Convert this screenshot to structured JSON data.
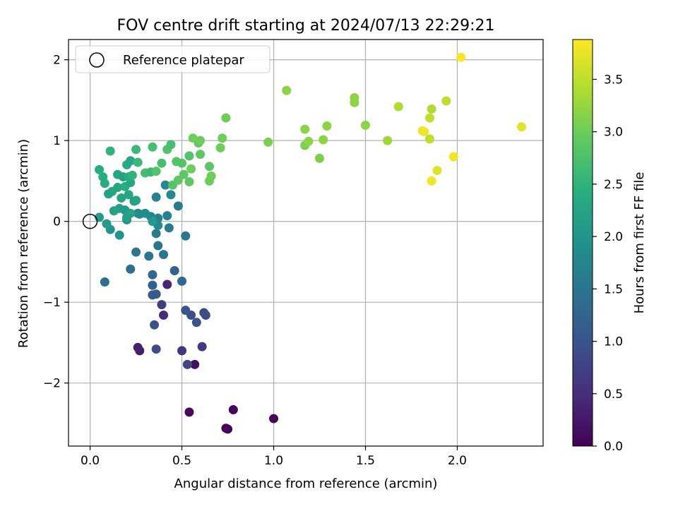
{
  "chart_data": {
    "type": "scatter",
    "title": "FOV centre drift starting at 2024/07/13 22:29:21",
    "xlabel": "Angular distance from reference (arcmin)",
    "ylabel": "Rotation from reference (arcmin)",
    "xlim": [
      -0.1176,
      2.4676
    ],
    "ylim": [
      -2.78,
      2.25
    ],
    "xticks": [
      0.0,
      0.5,
      1.0,
      1.5,
      2.0
    ],
    "xtick_labels": [
      "0.0",
      "0.5",
      "1.0",
      "1.5",
      "2.0"
    ],
    "yticks": [
      -2,
      -1,
      0,
      1,
      2
    ],
    "ytick_labels": [
      "−2",
      "−1",
      "0",
      "1",
      "2"
    ],
    "grid": true,
    "legend": {
      "position": "top-left",
      "label": "Reference platepar",
      "marker": "open circle"
    },
    "reference_point": {
      "x": 0.0,
      "y": 0.0
    },
    "colorbar": {
      "label": "Hours from first FF file",
      "colormap": "viridis",
      "range": [
        0.0,
        3.88
      ],
      "ticks": [
        0.0,
        0.5,
        1.0,
        1.5,
        2.0,
        2.5,
        3.0,
        3.5
      ],
      "tick_labels": [
        "0.0",
        "0.5",
        "1.0",
        "1.5",
        "2.0",
        "2.5",
        "3.0",
        "3.5"
      ]
    },
    "points": [
      {
        "x": 0.75,
        "y": -2.57,
        "c": 0.05
      },
      {
        "x": 0.74,
        "y": -2.56,
        "c": 0.05
      },
      {
        "x": 0.78,
        "y": -2.33,
        "c": 0.08
      },
      {
        "x": 1.0,
        "y": -2.44,
        "c": 0.07
      },
      {
        "x": 0.54,
        "y": -2.36,
        "c": 0.1
      },
      {
        "x": 0.57,
        "y": -1.77,
        "c": 0.15
      },
      {
        "x": 0.27,
        "y": -1.6,
        "c": 0.3
      },
      {
        "x": 0.26,
        "y": -1.56,
        "c": 0.35
      },
      {
        "x": 0.42,
        "y": -0.78,
        "c": 0.4
      },
      {
        "x": 0.4,
        "y": -1.16,
        "c": 0.45
      },
      {
        "x": 0.5,
        "y": -1.6,
        "c": 0.6
      },
      {
        "x": 0.61,
        "y": -1.55,
        "c": 0.6
      },
      {
        "x": 0.53,
        "y": -1.77,
        "c": 0.8
      },
      {
        "x": 0.39,
        "y": -1.03,
        "c": 0.7
      },
      {
        "x": 0.36,
        "y": -1.58,
        "c": 0.9
      },
      {
        "x": 0.55,
        "y": -1.16,
        "c": 0.9
      },
      {
        "x": 0.62,
        "y": -1.13,
        "c": 0.9
      },
      {
        "x": 0.63,
        "y": -1.16,
        "c": 0.9
      },
      {
        "x": 0.52,
        "y": -1.1,
        "c": 1.0
      },
      {
        "x": 0.58,
        "y": -1.25,
        "c": 1.0
      },
      {
        "x": 0.35,
        "y": -1.28,
        "c": 1.0
      },
      {
        "x": 0.34,
        "y": -0.91,
        "c": 1.1
      },
      {
        "x": 0.36,
        "y": -0.9,
        "c": 1.1
      },
      {
        "x": 0.34,
        "y": -0.79,
        "c": 1.2
      },
      {
        "x": 0.34,
        "y": -0.66,
        "c": 1.3
      },
      {
        "x": 0.46,
        "y": -0.61,
        "c": 1.2
      },
      {
        "x": 0.5,
        "y": -0.74,
        "c": 1.3
      },
      {
        "x": 0.08,
        "y": -0.75,
        "c": 1.4
      },
      {
        "x": 0.22,
        "y": -0.59,
        "c": 1.4
      },
      {
        "x": 0.32,
        "y": -0.43,
        "c": 1.5
      },
      {
        "x": 0.25,
        "y": -0.38,
        "c": 1.5
      },
      {
        "x": 0.37,
        "y": -0.3,
        "c": 1.5
      },
      {
        "x": 0.4,
        "y": -0.41,
        "c": 1.5
      },
      {
        "x": 0.52,
        "y": -0.18,
        "c": 1.55
      },
      {
        "x": 0.43,
        "y": -0.08,
        "c": 1.6
      },
      {
        "x": 0.36,
        "y": -0.15,
        "c": 1.6
      },
      {
        "x": 0.48,
        "y": 0.19,
        "c": 1.6
      },
      {
        "x": 0.42,
        "y": 0.07,
        "c": 1.7
      },
      {
        "x": 0.36,
        "y": 0.3,
        "c": 1.7
      },
      {
        "x": 0.37,
        "y": 0.04,
        "c": 1.7
      },
      {
        "x": 0.33,
        "y": 0.06,
        "c": 1.75
      },
      {
        "x": 0.37,
        "y": -0.05,
        "c": 1.8
      },
      {
        "x": 0.26,
        "y": 0.1,
        "c": 1.8
      },
      {
        "x": 0.44,
        "y": 0.33,
        "c": 1.8
      },
      {
        "x": 0.41,
        "y": 0.45,
        "c": 1.8
      },
      {
        "x": 0.3,
        "y": 0.1,
        "c": 1.9
      },
      {
        "x": 0.2,
        "y": 0.02,
        "c": 1.9
      },
      {
        "x": 0.27,
        "y": 0.09,
        "c": 1.9
      },
      {
        "x": 0.34,
        "y": 0.0,
        "c": 2.1
      },
      {
        "x": 0.16,
        "y": -0.17,
        "c": 2.0
      },
      {
        "x": 0.11,
        "y": -0.1,
        "c": 2.0
      },
      {
        "x": 0.09,
        "y": -0.03,
        "c": 2.1
      },
      {
        "x": 0.05,
        "y": 0.05,
        "c": 2.1
      },
      {
        "x": 0.13,
        "y": 0.13,
        "c": 2.2
      },
      {
        "x": 0.16,
        "y": 0.16,
        "c": 2.2
      },
      {
        "x": 0.19,
        "y": 0.14,
        "c": 2.1
      },
      {
        "x": 0.22,
        "y": 0.1,
        "c": 2.2
      },
      {
        "x": 0.2,
        "y": 0.05,
        "c": 2.2
      },
      {
        "x": 0.24,
        "y": 0.25,
        "c": 2.1
      },
      {
        "x": 0.25,
        "y": 0.26,
        "c": 2.2
      },
      {
        "x": 0.21,
        "y": 0.33,
        "c": 2.3
      },
      {
        "x": 0.17,
        "y": 0.29,
        "c": 2.3
      },
      {
        "x": 0.15,
        "y": 0.42,
        "c": 2.3
      },
      {
        "x": 0.12,
        "y": 0.37,
        "c": 2.3
      },
      {
        "x": 0.1,
        "y": 0.34,
        "c": 2.2
      },
      {
        "x": 0.19,
        "y": 0.43,
        "c": 2.4
      },
      {
        "x": 0.22,
        "y": 0.48,
        "c": 2.3
      },
      {
        "x": 0.08,
        "y": 0.47,
        "c": 2.4
      },
      {
        "x": 0.07,
        "y": 0.55,
        "c": 2.4
      },
      {
        "x": 0.05,
        "y": 0.64,
        "c": 2.4
      },
      {
        "x": 0.15,
        "y": 0.58,
        "c": 2.3
      },
      {
        "x": 0.18,
        "y": 0.55,
        "c": 2.2
      },
      {
        "x": 0.21,
        "y": 0.55,
        "c": 2.4
      },
      {
        "x": 0.23,
        "y": 0.57,
        "c": 2.5
      },
      {
        "x": 0.2,
        "y": 0.7,
        "c": 2.4
      },
      {
        "x": 0.22,
        "y": 0.75,
        "c": 2.3
      },
      {
        "x": 0.26,
        "y": 0.73,
        "c": 2.6
      },
      {
        "x": 0.11,
        "y": 0.87,
        "c": 2.5
      },
      {
        "x": 0.25,
        "y": 0.89,
        "c": 2.6
      },
      {
        "x": 0.3,
        "y": 0.6,
        "c": 2.7
      },
      {
        "x": 0.33,
        "y": 0.61,
        "c": 2.6
      },
      {
        "x": 0.36,
        "y": 0.62,
        "c": 2.8
      },
      {
        "x": 0.39,
        "y": 0.72,
        "c": 2.7
      },
      {
        "x": 0.34,
        "y": 0.92,
        "c": 2.7
      },
      {
        "x": 0.42,
        "y": 0.89,
        "c": 2.8
      },
      {
        "x": 0.44,
        "y": 0.95,
        "c": 2.7
      },
      {
        "x": 0.45,
        "y": 0.45,
        "c": 2.8
      },
      {
        "x": 0.48,
        "y": 0.51,
        "c": 2.9
      },
      {
        "x": 0.51,
        "y": 0.58,
        "c": 2.9
      },
      {
        "x": 0.47,
        "y": 0.74,
        "c": 2.8
      },
      {
        "x": 0.5,
        "y": 0.72,
        "c": 2.8
      },
      {
        "x": 0.54,
        "y": 0.49,
        "c": 2.9
      },
      {
        "x": 0.55,
        "y": 0.65,
        "c": 3.0
      },
      {
        "x": 0.54,
        "y": 0.81,
        "c": 2.8
      },
      {
        "x": 0.59,
        "y": 0.97,
        "c": 2.9
      },
      {
        "x": 0.56,
        "y": 1.03,
        "c": 3.0
      },
      {
        "x": 0.6,
        "y": 1.0,
        "c": 3.0
      },
      {
        "x": 0.6,
        "y": 0.83,
        "c": 2.9
      },
      {
        "x": 0.65,
        "y": 0.68,
        "c": 2.9
      },
      {
        "x": 0.66,
        "y": 0.56,
        "c": 3.0
      },
      {
        "x": 0.65,
        "y": 0.5,
        "c": 3.0
      },
      {
        "x": 0.71,
        "y": 0.91,
        "c": 3.0
      },
      {
        "x": 0.72,
        "y": 1.03,
        "c": 3.0
      },
      {
        "x": 0.74,
        "y": 1.28,
        "c": 3.0
      },
      {
        "x": 0.97,
        "y": 0.98,
        "c": 3.1
      },
      {
        "x": 1.07,
        "y": 1.62,
        "c": 3.2
      },
      {
        "x": 1.17,
        "y": 0.94,
        "c": 3.1
      },
      {
        "x": 1.17,
        "y": 1.14,
        "c": 3.2
      },
      {
        "x": 1.19,
        "y": 0.99,
        "c": 3.2
      },
      {
        "x": 1.25,
        "y": 0.78,
        "c": 3.1
      },
      {
        "x": 1.27,
        "y": 1.01,
        "c": 3.2
      },
      {
        "x": 1.29,
        "y": 1.18,
        "c": 3.2
      },
      {
        "x": 1.44,
        "y": 1.47,
        "c": 3.2
      },
      {
        "x": 1.44,
        "y": 1.53,
        "c": 3.2
      },
      {
        "x": 1.5,
        "y": 1.19,
        "c": 3.2
      },
      {
        "x": 1.62,
        "y": 1.0,
        "c": 3.3
      },
      {
        "x": 1.68,
        "y": 1.42,
        "c": 3.4
      },
      {
        "x": 1.81,
        "y": 1.12,
        "c": 3.8
      },
      {
        "x": 1.82,
        "y": 1.11,
        "c": 3.8
      },
      {
        "x": 1.85,
        "y": 1.28,
        "c": 3.5
      },
      {
        "x": 1.86,
        "y": 1.39,
        "c": 3.4
      },
      {
        "x": 1.85,
        "y": 1.02,
        "c": 3.5
      },
      {
        "x": 1.86,
        "y": 0.5,
        "c": 3.8
      },
      {
        "x": 1.89,
        "y": 0.63,
        "c": 3.7
      },
      {
        "x": 1.94,
        "y": 1.49,
        "c": 3.5
      },
      {
        "x": 1.98,
        "y": 0.8,
        "c": 3.8
      },
      {
        "x": 2.02,
        "y": 2.03,
        "c": 3.85
      },
      {
        "x": 2.35,
        "y": 1.17,
        "c": 3.7
      }
    ]
  }
}
